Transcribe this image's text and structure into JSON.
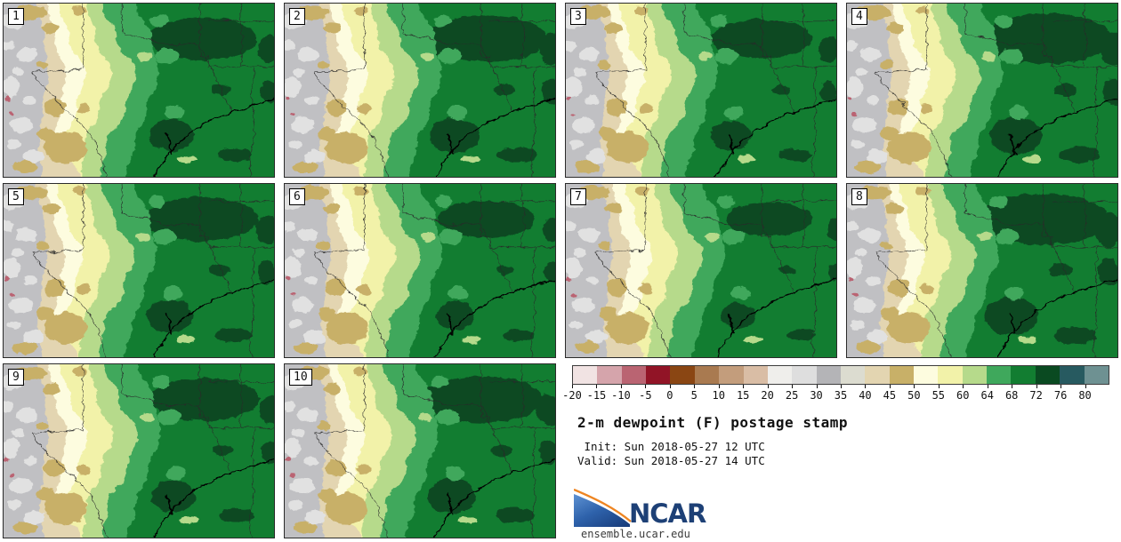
{
  "panels": [
    {
      "label": "1"
    },
    {
      "label": "2"
    },
    {
      "label": "3"
    },
    {
      "label": "4"
    },
    {
      "label": "5"
    },
    {
      "label": "6"
    },
    {
      "label": "7"
    },
    {
      "label": "8"
    },
    {
      "label": "9"
    },
    {
      "label": "10"
    }
  ],
  "colorbar": {
    "ticks": [
      "-20",
      "-15",
      "-10",
      "-5",
      "0",
      "5",
      "10",
      "15",
      "20",
      "25",
      "30",
      "35",
      "40",
      "45",
      "50",
      "55",
      "60",
      "64",
      "68",
      "72",
      "76",
      "80"
    ],
    "colors": [
      "#f1e3e3",
      "#d5a4ab",
      "#ba6472",
      "#911426",
      "#8a4613",
      "#a97a50",
      "#c39d7c",
      "#d9bda5",
      "#efeeeb",
      "#dedede",
      "#b4b4b7",
      "#dcdcd0",
      "#e3d5b1",
      "#c8b068",
      "#fdfcdf",
      "#f2f2a9",
      "#b6da8b",
      "#3fa85c",
      "#127d31",
      "#0a4a21",
      "#275a60",
      "#6e9192"
    ]
  },
  "info": {
    "title": "2-m dewpoint (F) postage stamp",
    "init_line": " Init: Sun 2018-05-27 12 UTC",
    "valid_line": "Valid: Sun 2018-05-27 14 UTC",
    "logo_text": "NCAR",
    "website": "ensemble.ucar.edu"
  },
  "map_palette": {
    "gray": "#c0c0c3",
    "gray_light": "#e1e1e1",
    "tan": "#c8b068",
    "tan_light": "#e3d5b1",
    "cream": "#fdfcdf",
    "yellow": "#f2f2a9",
    "green_light": "#b6da8b",
    "green_mid": "#3fa85c",
    "green_dark": "#127d31",
    "green_vdark": "#0a4a21",
    "pink": "#ba6472",
    "border": "#2a2a2a",
    "water": "#000000",
    "logo_blue_dark": "#1a3f7e",
    "logo_blue_light": "#5e92d3",
    "logo_orange": "#ee8522",
    "logo_text_color": "#1d4076"
  }
}
